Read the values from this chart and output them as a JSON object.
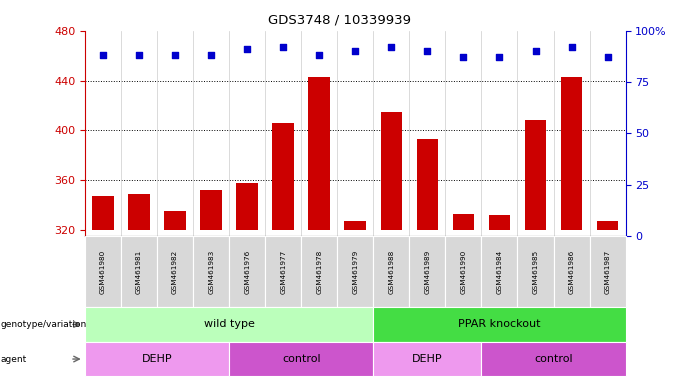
{
  "title": "GDS3748 / 10339939",
  "samples": [
    "GSM461980",
    "GSM461981",
    "GSM461982",
    "GSM461983",
    "GSM461976",
    "GSM461977",
    "GSM461978",
    "GSM461979",
    "GSM461988",
    "GSM461989",
    "GSM461990",
    "GSM461984",
    "GSM461985",
    "GSM461986",
    "GSM461987"
  ],
  "counts": [
    347,
    349,
    335,
    352,
    358,
    406,
    443,
    327,
    415,
    393,
    333,
    332,
    408,
    443,
    327
  ],
  "percentile_ranks": [
    88,
    88,
    88,
    88,
    91,
    92,
    88,
    90,
    92,
    90,
    87,
    87,
    90,
    92,
    87
  ],
  "ylim_left": [
    315,
    480
  ],
  "ylim_right": [
    0,
    100
  ],
  "yticks_left": [
    320,
    360,
    400,
    440,
    480
  ],
  "yticks_right": [
    0,
    25,
    50,
    75,
    100
  ],
  "bar_color": "#cc0000",
  "dot_color": "#0000cc",
  "background_color": "#ffffff",
  "plot_bg": "#ffffff",
  "genotype_groups": [
    {
      "label": "wild type",
      "start": 0,
      "end": 8,
      "color": "#bbffbb"
    },
    {
      "label": "PPAR knockout",
      "start": 8,
      "end": 15,
      "color": "#44dd44"
    }
  ],
  "agent_groups": [
    {
      "label": "DEHP",
      "start": 0,
      "end": 4,
      "color": "#ee99ee"
    },
    {
      "label": "control",
      "start": 4,
      "end": 8,
      "color": "#cc55cc"
    },
    {
      "label": "DEHP",
      "start": 8,
      "end": 11,
      "color": "#ee99ee"
    },
    {
      "label": "control",
      "start": 11,
      "end": 15,
      "color": "#cc55cc"
    }
  ],
  "legend_count_color": "#cc0000",
  "legend_dot_color": "#0000cc",
  "tick_label_color_left": "#cc0000",
  "tick_label_color_right": "#0000cc"
}
